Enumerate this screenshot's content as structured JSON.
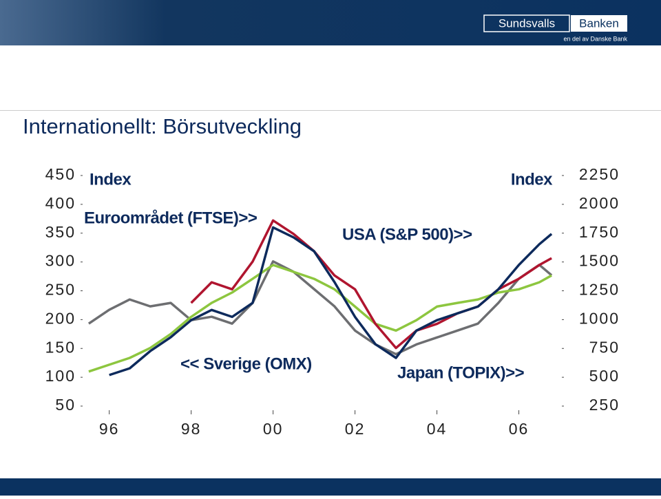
{
  "header": {
    "logo_left": "Sundsvalls",
    "logo_right": "Banken",
    "tagline": "en del av Danske Bank"
  },
  "chart_data": {
    "type": "line",
    "title": "Internationellt: Börsutveckling",
    "y_label": "Index",
    "y2_label": "Index",
    "x": [
      1995.5,
      1996,
      1996.5,
      1997,
      1997.5,
      1998,
      1998.5,
      1999,
      1999.5,
      2000,
      2000.5,
      2001,
      2001.5,
      2002,
      2002.5,
      2003,
      2003.5,
      2004,
      2004.5,
      2005,
      2005.5,
      2006,
      2006.5,
      2006.8
    ],
    "xlim": [
      1995.35,
      2007.05
    ],
    "xticks": [
      {
        "value": 1996,
        "label": "96"
      },
      {
        "value": 1998,
        "label": "98"
      },
      {
        "value": 2000,
        "label": "00"
      },
      {
        "value": 2002,
        "label": "02"
      },
      {
        "value": 2004,
        "label": "04"
      },
      {
        "value": 2006,
        "label": "06"
      }
    ],
    "ylim": [
      50,
      450
    ],
    "yticks": [
      50,
      100,
      150,
      200,
      250,
      300,
      350,
      400,
      450
    ],
    "y2lim": [
      250,
      2250
    ],
    "y2ticks": [
      250,
      500,
      750,
      1000,
      1250,
      1500,
      1750,
      2000,
      2250
    ],
    "series": [
      {
        "name": "<< Sverige (OMX)",
        "color": "#6d6e71",
        "axis": "y",
        "values": [
          193,
          217,
          235,
          223,
          229,
          199,
          205,
          193,
          229,
          301,
          283,
          253,
          223,
          181,
          157,
          140,
          157,
          169,
          181,
          193,
          229,
          271,
          295,
          277
        ]
      },
      {
        "name": "Japan (TOPIX)>>",
        "color": "#8dc63f",
        "axis": "y2",
        "values": [
          550,
          609,
          668,
          754,
          875,
          1024,
          1145,
          1235,
          1354,
          1474,
          1414,
          1354,
          1263,
          1113,
          963,
          905,
          995,
          1113,
          1145,
          1175,
          1235,
          1263,
          1324,
          1383
        ]
      },
      {
        "name": "Euroområdet (FTSE)>>",
        "color": "#b0152f",
        "axis": "y2",
        "values": [
          null,
          null,
          null,
          null,
          null,
          1145,
          1324,
          1263,
          1503,
          1860,
          1743,
          1593,
          1383,
          1263,
          963,
          754,
          905,
          963,
          1054,
          1113,
          1263,
          1354,
          1474,
          1533
        ]
      },
      {
        "name": "USA (S&P 500)>>",
        "color": "#0d2a5c",
        "axis": "y2",
        "values": [
          null,
          519,
          578,
          727,
          847,
          995,
          1084,
          1024,
          1145,
          1800,
          1713,
          1593,
          1325,
          1024,
          786,
          668,
          905,
          995,
          1054,
          1113,
          1263,
          1474,
          1654,
          1743
        ]
      }
    ]
  }
}
